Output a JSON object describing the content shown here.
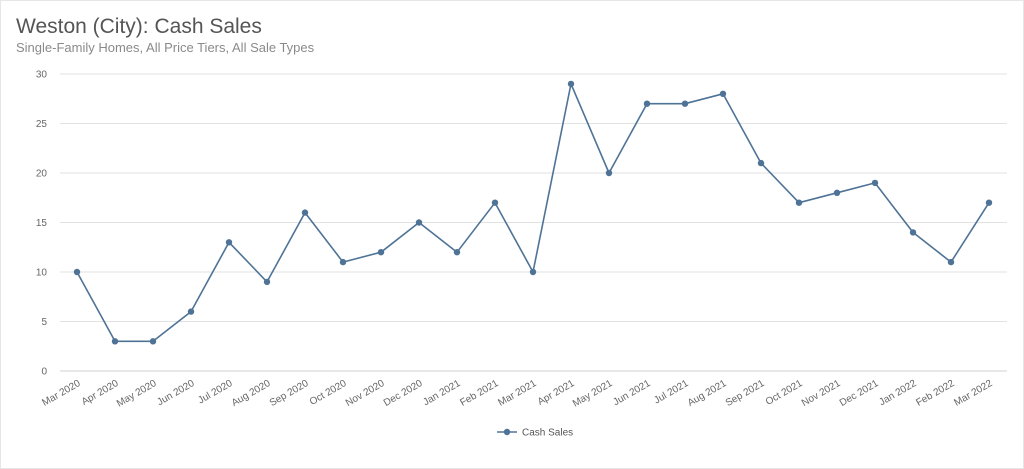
{
  "chart_data": {
    "type": "line",
    "title": "Weston (City): Cash Sales",
    "subtitle": "Single-Family Homes, All Price Tiers, All Sale Types",
    "xlabel": "",
    "ylabel": "",
    "ylim": [
      0,
      30
    ],
    "yticks": [
      0,
      5,
      10,
      15,
      20,
      25,
      30
    ],
    "grid": true,
    "legend_position": "bottom-center",
    "categories": [
      "Mar 2020",
      "Apr 2020",
      "May 2020",
      "Jun 2020",
      "Jul 2020",
      "Aug 2020",
      "Sep 2020",
      "Oct 2020",
      "Nov 2020",
      "Dec 2020",
      "Jan 2021",
      "Feb 2021",
      "Mar 2021",
      "Apr 2021",
      "May 2021",
      "Jun 2021",
      "Jul 2021",
      "Aug 2021",
      "Sep 2021",
      "Oct 2021",
      "Nov 2021",
      "Dec 2021",
      "Jan 2022",
      "Feb 2022",
      "Mar 2022"
    ],
    "series": [
      {
        "name": "Cash Sales",
        "color": "#4e7396",
        "values": [
          10,
          3,
          3,
          6,
          13,
          9,
          16,
          11,
          12,
          15,
          12,
          17,
          10,
          29,
          20,
          27,
          27,
          28,
          21,
          17,
          18,
          19,
          14,
          11,
          17
        ]
      }
    ]
  }
}
